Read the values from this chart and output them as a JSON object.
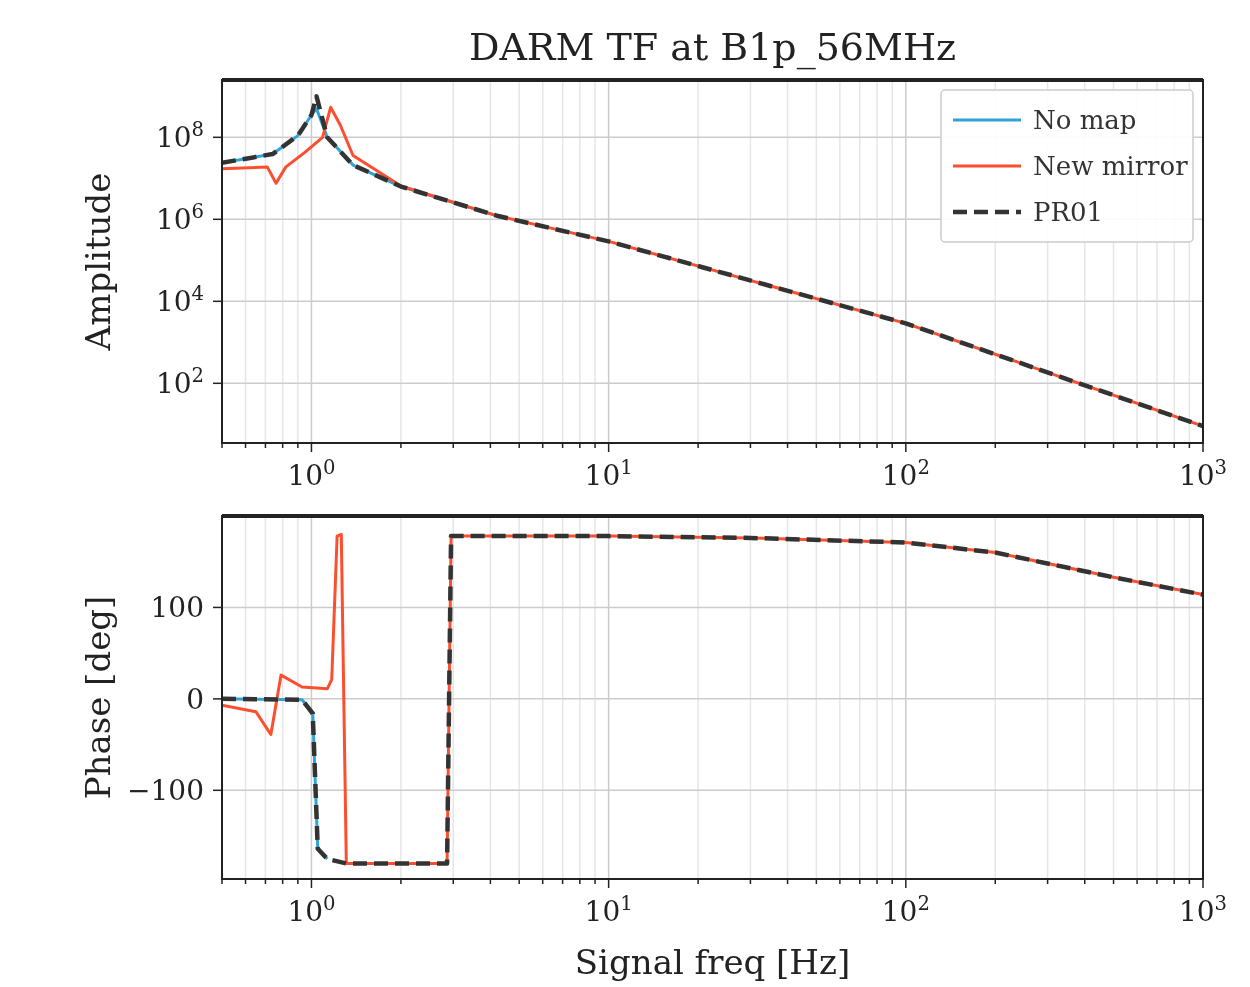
{
  "chart_data": [
    {
      "type": "line",
      "title": "DARM TF at B1p_56MHz",
      "ylabel": "Amplitude",
      "log": "xy",
      "grid": true,
      "legend": "top right",
      "xlim": [
        0.5,
        1000
      ],
      "ylim": [
        3.5,
        2500000000.0
      ],
      "xticks": [
        {
          "value": 0.5,
          "label": null
        },
        {
          "value": 0.6,
          "label": null
        },
        {
          "value": 0.7,
          "label": null
        },
        {
          "value": 0.8,
          "label": null
        },
        {
          "value": 0.9,
          "label": null
        },
        {
          "value": 1,
          "label": "10$^{0}$"
        },
        {
          "value": 2,
          "label": null
        },
        {
          "value": 3,
          "label": null
        },
        {
          "value": 4,
          "label": null
        },
        {
          "value": 5,
          "label": null
        },
        {
          "value": 6,
          "label": null
        },
        {
          "value": 7,
          "label": null
        },
        {
          "value": 8,
          "label": null
        },
        {
          "value": 9,
          "label": null
        },
        {
          "value": 10,
          "label": "10$^{1}$"
        },
        {
          "value": 20,
          "label": null
        },
        {
          "value": 30,
          "label": null
        },
        {
          "value": 40,
          "label": null
        },
        {
          "value": 50,
          "label": null
        },
        {
          "value": 60,
          "label": null
        },
        {
          "value": 70,
          "label": null
        },
        {
          "value": 80,
          "label": null
        },
        {
          "value": 90,
          "label": null
        },
        {
          "value": 100,
          "label": "10$^{2}$"
        },
        {
          "value": 200,
          "label": null
        },
        {
          "value": 300,
          "label": null
        },
        {
          "value": 400,
          "label": null
        },
        {
          "value": 500,
          "label": null
        },
        {
          "value": 600,
          "label": null
        },
        {
          "value": 700,
          "label": null
        },
        {
          "value": 800,
          "label": null
        },
        {
          "value": 900,
          "label": null
        },
        {
          "value": 1000,
          "label": "10$^{3}$"
        }
      ],
      "yticks": [
        {
          "value": 100,
          "label": "10$^{2}$"
        },
        {
          "value": 10000,
          "label": "10$^{4}$"
        },
        {
          "value": 1000000,
          "label": "10$^{6}$"
        },
        {
          "value": 100000000,
          "label": "10$^{8}$"
        }
      ],
      "series": [
        {
          "name": "No map",
          "color": "#30a2da",
          "line_style": "solid",
          "x": [
            0.5,
            0.74,
            0.9,
            1.0,
            1.04,
            1.13,
            1.38,
            2,
            4.25
          ],
          "values": [
            24000000.0,
            39000000.0,
            110000000.0,
            350000000.0,
            500000000.0,
            100000000.0,
            21000000.0,
            6300000.0,
            1200000.0
          ]
        },
        {
          "name": "New mirror",
          "color": "#fc4f30",
          "line_style": "solid",
          "x": [
            0.5,
            0.71,
            0.76,
            0.82,
            0.95,
            1.09,
            1.16,
            1.25,
            1.38,
            2,
            4.25,
            10,
            100,
            1000
          ],
          "values": [
            17000000.0,
            19000000.0,
            7600000.0,
            19000000.0,
            43000000.0,
            100000000.0,
            540000000.0,
            200000000.0,
            36000000.0,
            6500000.0,
            1200000.0,
            290000.0,
            2900.0,
            9
          ]
        },
        {
          "name": "PR01",
          "color": "#333333",
          "line_style": "dashed",
          "x": [
            0.5,
            0.74,
            0.9,
            1.0,
            1.04,
            1.13,
            1.38,
            2,
            4.25,
            10,
            100,
            1000
          ],
          "values": [
            24000000.0,
            39000000.0,
            110000000.0,
            350000000.0,
            1000000000.0,
            100000000.0,
            21000000.0,
            6300000.0,
            1200000.0,
            290000.0,
            2900.0,
            9
          ]
        }
      ]
    },
    {
      "type": "line",
      "xlabel": "Signal freq [Hz]",
      "ylabel": "Phase [deg]",
      "log": "x",
      "grid": true,
      "xlim": [
        0.5,
        1000
      ],
      "ylim": [
        -197,
        200
      ],
      "xticks": [
        {
          "value": 0.5,
          "label": null
        },
        {
          "value": 0.6,
          "label": null
        },
        {
          "value": 0.7,
          "label": null
        },
        {
          "value": 0.8,
          "label": null
        },
        {
          "value": 0.9,
          "label": null
        },
        {
          "value": 1,
          "label": "10$^{0}$"
        },
        {
          "value": 2,
          "label": null
        },
        {
          "value": 3,
          "label": null
        },
        {
          "value": 4,
          "label": null
        },
        {
          "value": 5,
          "label": null
        },
        {
          "value": 6,
          "label": null
        },
        {
          "value": 7,
          "label": null
        },
        {
          "value": 8,
          "label": null
        },
        {
          "value": 9,
          "label": null
        },
        {
          "value": 10,
          "label": "10$^{1}$"
        },
        {
          "value": 20,
          "label": null
        },
        {
          "value": 30,
          "label": null
        },
        {
          "value": 40,
          "label": null
        },
        {
          "value": 50,
          "label": null
        },
        {
          "value": 60,
          "label": null
        },
        {
          "value": 70,
          "label": null
        },
        {
          "value": 80,
          "label": null
        },
        {
          "value": 90,
          "label": null
        },
        {
          "value": 100,
          "label": "10$^{2}$"
        },
        {
          "value": 200,
          "label": null
        },
        {
          "value": 300,
          "label": null
        },
        {
          "value": 400,
          "label": null
        },
        {
          "value": 500,
          "label": null
        },
        {
          "value": 600,
          "label": null
        },
        {
          "value": 700,
          "label": null
        },
        {
          "value": 800,
          "label": null
        },
        {
          "value": 900,
          "label": null
        },
        {
          "value": 1000,
          "label": "10$^{3}$"
        }
      ],
      "yticks": [
        {
          "value": -100,
          "label": "−100"
        },
        0,
        100
      ],
      "series": [
        {
          "color": "#30a2da",
          "line_style": "solid",
          "x": [
            0.5,
            0.93,
            1.01,
            1.05,
            1.13
          ],
          "values": [
            0,
            -1,
            -16,
            -164,
            -175
          ]
        },
        {
          "color": "#fc4f30",
          "line_style": "solid",
          "x": [
            0.5,
            0.65,
            0.73,
            0.79,
            0.93,
            1.13,
            1.17,
            1.22,
            1.26,
            1.31,
            2.86,
            2.95,
            10,
            30,
            100,
            200,
            500,
            1000
          ],
          "values": [
            -7,
            -14,
            -39,
            26,
            13,
            11,
            21,
            178,
            180,
            -180,
            -180,
            178,
            178,
            176,
            171,
            160,
            133,
            114
          ]
        },
        {
          "color": "#333333",
          "line_style": "dashed",
          "x": [
            0.5,
            0.93,
            1.01,
            1.05,
            1.13,
            1.31,
            2.86,
            2.95,
            10,
            30,
            100,
            200,
            500,
            1000
          ],
          "values": [
            0,
            -1,
            -16,
            -164,
            -175,
            -180,
            -180,
            178,
            178,
            176,
            171,
            160,
            133,
            114
          ]
        }
      ]
    }
  ]
}
